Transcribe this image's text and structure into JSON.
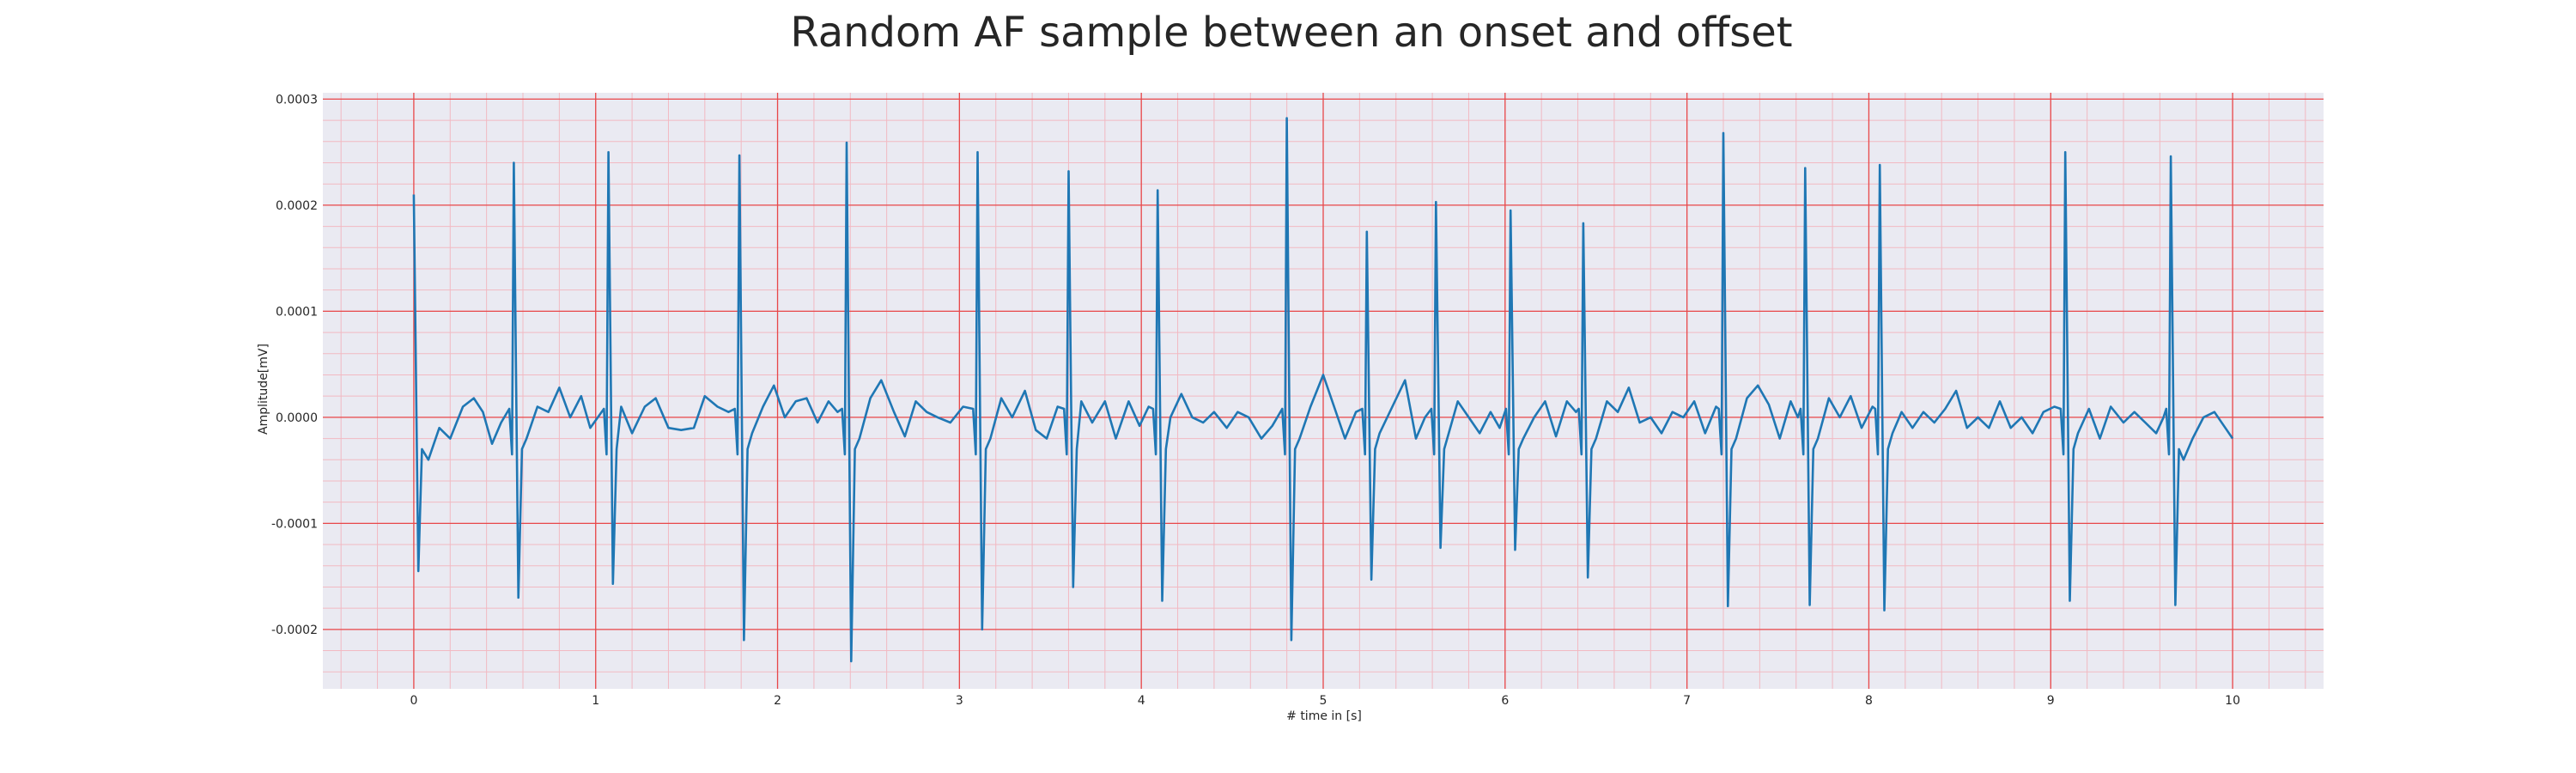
{
  "chart_data": {
    "type": "line",
    "title": "Random AF sample between an onset and offset",
    "xlabel": "# time in [s]",
    "ylabel": "Amplitude[mV]",
    "xlim": [
      -0.5,
      10.5
    ],
    "ylim": [
      -0.000256,
      0.000306
    ],
    "x_ticks": [
      0,
      1,
      2,
      3,
      4,
      5,
      6,
      7,
      8,
      9,
      10
    ],
    "x_tick_labels": [
      "0",
      "1",
      "2",
      "3",
      "4",
      "5",
      "6",
      "7",
      "8",
      "9",
      "10"
    ],
    "y_ticks": [
      -0.0002,
      -0.0001,
      0.0,
      0.0001,
      0.0002,
      0.0003
    ],
    "y_tick_labels": [
      "-0.0002",
      "-0.0001",
      "0.0000",
      "0.0001",
      "0.0002",
      "0.0003"
    ],
    "grid": true,
    "minor_grid": true,
    "x_minor_step": 0.2,
    "y_minor_step": 2e-05,
    "colors": {
      "background": "#eaeaf2",
      "line": "#1f77b4",
      "major_grid": "#e8484a",
      "minor_grid": "#f2b9c2",
      "text": "#262626"
    },
    "series": [
      {
        "beats": [
          {
            "t": 0.0,
            "r": 0.00021,
            "s": -0.000145
          },
          {
            "t": 0.55,
            "r": 0.00024,
            "s": -0.00017
          },
          {
            "t": 1.07,
            "r": 0.00025,
            "s": -0.000157
          },
          {
            "t": 1.79,
            "r": 0.000247,
            "s": -0.00021
          },
          {
            "t": 2.38,
            "r": 0.000259,
            "s": -0.00023
          },
          {
            "t": 3.1,
            "r": 0.00025,
            "s": -0.0002
          },
          {
            "t": 3.6,
            "r": 0.000232,
            "s": -0.00016
          },
          {
            "t": 4.09,
            "r": 0.000214,
            "s": -0.000173
          },
          {
            "t": 4.8,
            "r": 0.000282,
            "s": -0.00021
          },
          {
            "t": 5.24,
            "r": 0.000175,
            "s": -0.000153
          },
          {
            "t": 5.62,
            "r": 0.000203,
            "s": -0.000123
          },
          {
            "t": 6.03,
            "r": 0.000195,
            "s": -0.000125
          },
          {
            "t": 6.43,
            "r": 0.000183,
            "s": -0.000151
          },
          {
            "t": 7.2,
            "r": 0.000268,
            "s": -0.000178
          },
          {
            "t": 7.65,
            "r": 0.000235,
            "s": -0.000177
          },
          {
            "t": 8.06,
            "r": 0.000238,
            "s": -0.000182
          },
          {
            "t": 9.08,
            "r": 0.00025,
            "s": -0.000173
          },
          {
            "t": 9.66,
            "r": 0.000246,
            "s": -0.000177
          }
        ],
        "baseline": [
          [
            0.08,
            -4e-05
          ],
          [
            0.14,
            -1e-05
          ],
          [
            0.2,
            -2e-05
          ],
          [
            0.27,
            1e-05
          ],
          [
            0.33,
            1.8e-05
          ],
          [
            0.38,
            5e-06
          ],
          [
            0.43,
            -2.5e-05
          ],
          [
            0.48,
            -5e-06
          ],
          [
            0.62,
            -2e-05
          ],
          [
            0.68,
            1e-05
          ],
          [
            0.74,
            5e-06
          ],
          [
            0.8,
            2.8e-05
          ],
          [
            0.86,
            0.0
          ],
          [
            0.92,
            2e-05
          ],
          [
            0.97,
            -1e-05
          ],
          [
            1.14,
            1e-05
          ],
          [
            1.2,
            -1.5e-05
          ],
          [
            1.27,
            1e-05
          ],
          [
            1.33,
            1.8e-05
          ],
          [
            1.4,
            -1e-05
          ],
          [
            1.47,
            -1.2e-05
          ],
          [
            1.54,
            -1e-05
          ],
          [
            1.6,
            2e-05
          ],
          [
            1.67,
            1e-05
          ],
          [
            1.73,
            5e-06
          ],
          [
            1.86,
            -1.5e-05
          ],
          [
            1.92,
            1e-05
          ],
          [
            1.98,
            3e-05
          ],
          [
            2.04,
            0.0
          ],
          [
            2.1,
            1.5e-05
          ],
          [
            2.16,
            1.8e-05
          ],
          [
            2.22,
            -5e-06
          ],
          [
            2.28,
            1.5e-05
          ],
          [
            2.33,
            5e-06
          ],
          [
            2.45,
            -2e-05
          ],
          [
            2.51,
            1.8e-05
          ],
          [
            2.57,
            3.5e-05
          ],
          [
            2.64,
            5e-06
          ],
          [
            2.7,
            -1.8e-05
          ],
          [
            2.76,
            1.5e-05
          ],
          [
            2.82,
            5e-06
          ],
          [
            2.88,
            0.0
          ],
          [
            2.95,
            -5e-06
          ],
          [
            3.02,
            1e-05
          ],
          [
            3.17,
            -2e-05
          ],
          [
            3.23,
            1.8e-05
          ],
          [
            3.29,
            0.0
          ],
          [
            3.36,
            2.5e-05
          ],
          [
            3.42,
            -1.2e-05
          ],
          [
            3.48,
            -2e-05
          ],
          [
            3.54,
            1e-05
          ],
          [
            3.67,
            1.5e-05
          ],
          [
            3.73,
            -5e-06
          ],
          [
            3.8,
            1.5e-05
          ],
          [
            3.86,
            -2e-05
          ],
          [
            3.93,
            1.5e-05
          ],
          [
            3.99,
            -8e-06
          ],
          [
            4.04,
            1e-05
          ],
          [
            4.16,
            0.0
          ],
          [
            4.22,
            2.2e-05
          ],
          [
            4.28,
            0.0
          ],
          [
            4.34,
            -5e-06
          ],
          [
            4.4,
            5e-06
          ],
          [
            4.47,
            -1e-05
          ],
          [
            4.53,
            5e-06
          ],
          [
            4.59,
            0.0
          ],
          [
            4.66,
            -2e-05
          ],
          [
            4.72,
            -8e-06
          ],
          [
            4.87,
            -2e-05
          ],
          [
            4.93,
            1e-05
          ],
          [
            5.0,
            4e-05
          ],
          [
            5.06,
            1e-05
          ],
          [
            5.12,
            -2e-05
          ],
          [
            5.18,
            5e-06
          ],
          [
            5.31,
            -1.5e-05
          ],
          [
            5.38,
            1e-05
          ],
          [
            5.45,
            3.5e-05
          ],
          [
            5.51,
            -2e-05
          ],
          [
            5.56,
            0.0
          ],
          [
            5.69,
            -1.5e-05
          ],
          [
            5.74,
            1.5e-05
          ],
          [
            5.8,
            0.0
          ],
          [
            5.86,
            -1.5e-05
          ],
          [
            5.92,
            5e-06
          ],
          [
            5.97,
            -1e-05
          ],
          [
            6.1,
            -2e-05
          ],
          [
            6.16,
            0.0
          ],
          [
            6.22,
            1.5e-05
          ],
          [
            6.28,
            -1.8e-05
          ],
          [
            6.34,
            1.5e-05
          ],
          [
            6.39,
            5e-06
          ],
          [
            6.5,
            -2e-05
          ],
          [
            6.56,
            1.5e-05
          ],
          [
            6.62,
            5e-06
          ],
          [
            6.68,
            2.8e-05
          ],
          [
            6.74,
            -5e-06
          ],
          [
            6.8,
            0.0
          ],
          [
            6.86,
            -1.5e-05
          ],
          [
            6.92,
            5e-06
          ],
          [
            6.98,
            0.0
          ],
          [
            7.04,
            1.5e-05
          ],
          [
            7.1,
            -1.5e-05
          ],
          [
            7.16,
            1e-05
          ],
          [
            7.27,
            -2e-05
          ],
          [
            7.33,
            1.8e-05
          ],
          [
            7.39,
            3e-05
          ],
          [
            7.45,
            1.2e-05
          ],
          [
            7.51,
            -2e-05
          ],
          [
            7.57,
            1.5e-05
          ],
          [
            7.61,
            0.0
          ],
          [
            7.72,
            -2e-05
          ],
          [
            7.78,
            1.8e-05
          ],
          [
            7.84,
            0.0
          ],
          [
            7.9,
            2e-05
          ],
          [
            7.96,
            -1e-05
          ],
          [
            8.02,
            1e-05
          ],
          [
            8.13,
            -1.5e-05
          ],
          [
            8.18,
            5e-06
          ],
          [
            8.24,
            -1e-05
          ],
          [
            8.3,
            5e-06
          ],
          [
            8.36,
            -5e-06
          ],
          [
            8.42,
            8e-06
          ],
          [
            8.48,
            2.5e-05
          ],
          [
            8.54,
            -1e-05
          ],
          [
            8.6,
            0.0
          ],
          [
            8.66,
            -1e-05
          ],
          [
            8.72,
            1.5e-05
          ],
          [
            8.78,
            -1e-05
          ],
          [
            8.84,
            0.0
          ],
          [
            8.9,
            -1.5e-05
          ],
          [
            8.96,
            5e-06
          ],
          [
            9.02,
            1e-05
          ],
          [
            9.15,
            -1.5e-05
          ],
          [
            9.21,
            8e-06
          ],
          [
            9.27,
            -2e-05
          ],
          [
            9.33,
            1e-05
          ],
          [
            9.4,
            -5e-06
          ],
          [
            9.46,
            5e-06
          ],
          [
            9.52,
            -5e-06
          ],
          [
            9.58,
            -1.5e-05
          ],
          [
            9.62,
            0.0
          ],
          [
            9.73,
            -4e-05
          ],
          [
            9.78,
            -2e-05
          ],
          [
            9.84,
            0.0
          ],
          [
            9.9,
            5e-06
          ],
          [
            9.96,
            -1e-05
          ],
          [
            10.0,
            -2e-05
          ]
        ]
      }
    ]
  }
}
